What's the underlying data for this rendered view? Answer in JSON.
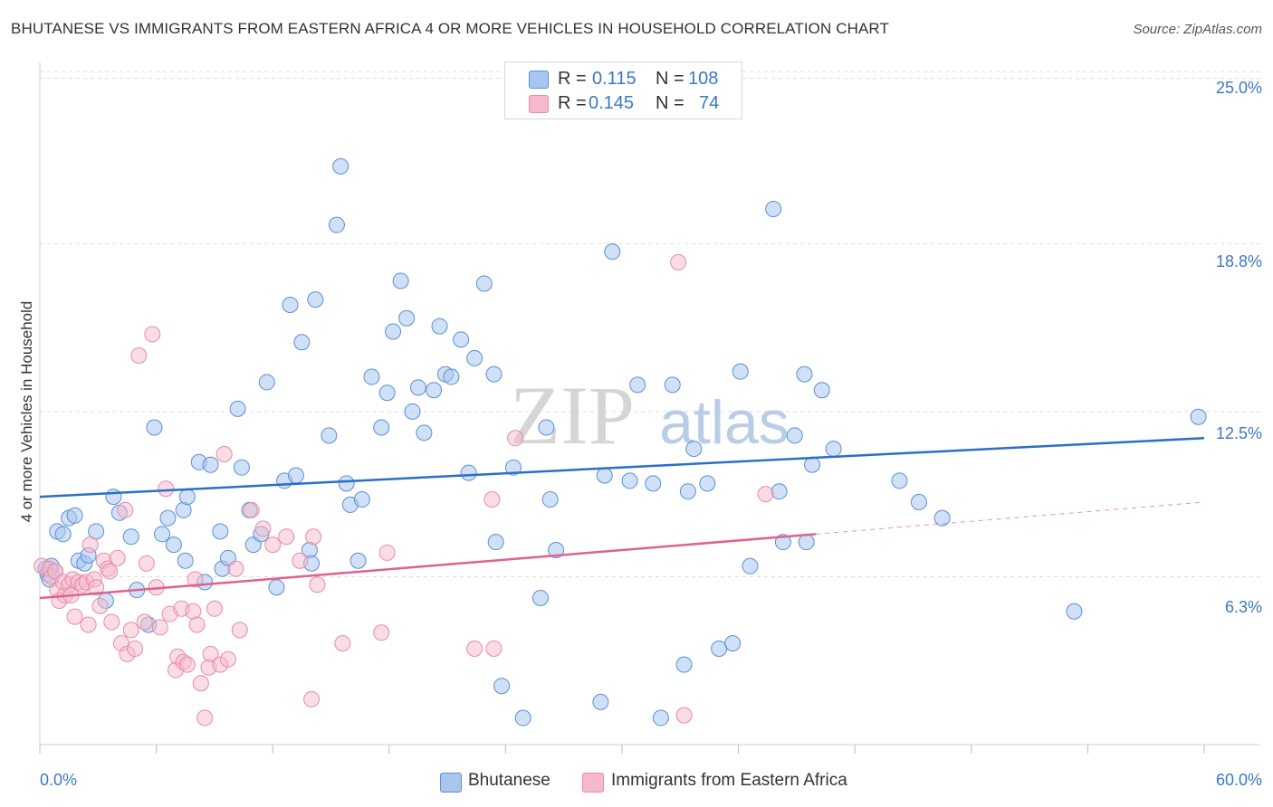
{
  "title": "BHUTANESE VS IMMIGRANTS FROM EASTERN AFRICA 4 OR MORE VEHICLES IN HOUSEHOLD CORRELATION CHART",
  "source": "Source: ZipAtlas.com",
  "watermark": {
    "zip": "ZIP",
    "atlas": "atlas"
  },
  "legend_top": {
    "rows": [
      {
        "r_label": "R =",
        "r_value": "0.115",
        "n_label": "N =",
        "n_value": "108"
      },
      {
        "r_label": "R =",
        "r_value": "0.145",
        "n_label": "N =",
        "n_value": "74"
      }
    ]
  },
  "legend_bottom": {
    "series1": "Bhutanese",
    "series2": "Immigrants from Eastern Africa"
  },
  "colors": {
    "blue_fill": "#a9c6ee",
    "blue_stroke": "#5a8fd6",
    "blue_line": "#2a6fc9",
    "pink_fill": "#f6b9cc",
    "pink_stroke": "#e88aa8",
    "pink_line": "#e0608e",
    "tick_text": "#3a78c8",
    "grid": "#dddddd"
  },
  "chart_data": {
    "type": "scatter",
    "title": "BHUTANESE VS IMMIGRANTS FROM EASTERN AFRICA 4 OR MORE VEHICLES IN HOUSEHOLD CORRELATION CHART",
    "xlabel": "",
    "ylabel": "4 or more Vehicles in Household",
    "xlim": [
      0,
      60
    ],
    "ylim": [
      0,
      25.6
    ],
    "x_tick_labels": [
      "0.0%",
      "60.0%"
    ],
    "y_ticks": [
      6.3,
      12.5,
      18.8,
      25.0
    ],
    "y_tick_labels": [
      "6.3%",
      "12.5%",
      "18.8%",
      "25.0%"
    ],
    "grid": true,
    "legend_position": "top-center",
    "series": [
      {
        "name": "Bhutanese",
        "r": 0.115,
        "n": 108,
        "trend": {
          "x": [
            0,
            60
          ],
          "y": [
            9.3,
            11.5
          ]
        },
        "points": [
          [
            0.3,
            6.6
          ],
          [
            0.4,
            6.4
          ],
          [
            0.5,
            6.2
          ],
          [
            0.6,
            6.7
          ],
          [
            0.8,
            6.5
          ],
          [
            0.9,
            8.0
          ],
          [
            1.2,
            7.9
          ],
          [
            1.5,
            8.5
          ],
          [
            1.8,
            8.6
          ],
          [
            2.0,
            6.9
          ],
          [
            2.3,
            6.8
          ],
          [
            2.5,
            7.1
          ],
          [
            2.9,
            8.0
          ],
          [
            3.4,
            5.4
          ],
          [
            3.8,
            9.3
          ],
          [
            4.1,
            8.7
          ],
          [
            4.7,
            7.8
          ],
          [
            5.0,
            5.8
          ],
          [
            5.6,
            4.5
          ],
          [
            5.9,
            11.9
          ],
          [
            6.3,
            7.9
          ],
          [
            6.6,
            8.5
          ],
          [
            6.9,
            7.5
          ],
          [
            7.4,
            8.8
          ],
          [
            7.5,
            6.9
          ],
          [
            7.6,
            9.3
          ],
          [
            8.2,
            10.6
          ],
          [
            8.5,
            6.1
          ],
          [
            8.8,
            10.5
          ],
          [
            9.3,
            8.0
          ],
          [
            9.4,
            6.6
          ],
          [
            9.7,
            7.0
          ],
          [
            10.2,
            12.6
          ],
          [
            10.4,
            10.4
          ],
          [
            10.8,
            8.8
          ],
          [
            11.0,
            7.5
          ],
          [
            11.4,
            7.9
          ],
          [
            11.7,
            13.6
          ],
          [
            12.2,
            5.9
          ],
          [
            12.6,
            9.9
          ],
          [
            12.9,
            16.5
          ],
          [
            13.2,
            10.1
          ],
          [
            13.5,
            15.1
          ],
          [
            13.9,
            7.3
          ],
          [
            14.0,
            6.8
          ],
          [
            14.2,
            16.7
          ],
          [
            14.9,
            11.6
          ],
          [
            15.3,
            19.5
          ],
          [
            15.5,
            21.7
          ],
          [
            15.8,
            9.8
          ],
          [
            16.0,
            9.0
          ],
          [
            16.4,
            6.9
          ],
          [
            16.6,
            9.2
          ],
          [
            17.1,
            13.8
          ],
          [
            17.6,
            11.9
          ],
          [
            17.9,
            13.2
          ],
          [
            18.2,
            15.5
          ],
          [
            18.6,
            17.4
          ],
          [
            18.9,
            16.0
          ],
          [
            19.2,
            12.5
          ],
          [
            19.5,
            13.4
          ],
          [
            19.8,
            11.7
          ],
          [
            20.3,
            13.3
          ],
          [
            20.6,
            15.7
          ],
          [
            20.9,
            13.9
          ],
          [
            21.2,
            13.8
          ],
          [
            21.7,
            15.2
          ],
          [
            22.1,
            10.2
          ],
          [
            22.4,
            14.5
          ],
          [
            22.9,
            17.3
          ],
          [
            23.4,
            13.9
          ],
          [
            23.5,
            7.6
          ],
          [
            23.8,
            2.2
          ],
          [
            24.4,
            10.4
          ],
          [
            24.9,
            1.0
          ],
          [
            25.8,
            5.5
          ],
          [
            26.1,
            11.9
          ],
          [
            26.3,
            9.2
          ],
          [
            26.6,
            7.3
          ],
          [
            28.9,
            1.6
          ],
          [
            29.1,
            10.1
          ],
          [
            29.5,
            18.5
          ],
          [
            30.4,
            9.9
          ],
          [
            30.8,
            13.5
          ],
          [
            31.6,
            9.8
          ],
          [
            32.0,
            1.0
          ],
          [
            32.6,
            13.5
          ],
          [
            33.2,
            3.0
          ],
          [
            33.4,
            9.5
          ],
          [
            33.7,
            11.1
          ],
          [
            34.4,
            9.8
          ],
          [
            35.0,
            3.6
          ],
          [
            35.7,
            3.8
          ],
          [
            36.1,
            14.0
          ],
          [
            36.6,
            6.7
          ],
          [
            37.8,
            20.1
          ],
          [
            38.1,
            9.5
          ],
          [
            38.3,
            7.6
          ],
          [
            38.9,
            11.6
          ],
          [
            39.4,
            13.9
          ],
          [
            39.5,
            7.6
          ],
          [
            39.8,
            10.5
          ],
          [
            40.3,
            13.3
          ],
          [
            40.9,
            11.1
          ],
          [
            44.3,
            9.9
          ],
          [
            45.3,
            9.1
          ],
          [
            46.5,
            8.5
          ],
          [
            53.3,
            5.0
          ],
          [
            59.7,
            12.3
          ]
        ]
      },
      {
        "name": "Immigrants from Eastern Africa",
        "r": 0.145,
        "n": 74,
        "trend": {
          "x": [
            0,
            40
          ],
          "y": [
            5.5,
            7.9
          ],
          "dashed_to": {
            "x": 60,
            "y": 9.1
          }
        },
        "points": [
          [
            0.1,
            6.7
          ],
          [
            0.5,
            6.6
          ],
          [
            0.6,
            6.3
          ],
          [
            0.8,
            6.5
          ],
          [
            0.9,
            5.8
          ],
          [
            1.0,
            5.4
          ],
          [
            1.2,
            6.1
          ],
          [
            1.3,
            5.6
          ],
          [
            1.5,
            6.0
          ],
          [
            1.6,
            5.6
          ],
          [
            1.7,
            6.2
          ],
          [
            1.8,
            4.8
          ],
          [
            2.0,
            6.1
          ],
          [
            2.2,
            6.0
          ],
          [
            2.4,
            6.1
          ],
          [
            2.5,
            4.5
          ],
          [
            2.6,
            7.5
          ],
          [
            2.8,
            6.2
          ],
          [
            2.9,
            5.9
          ],
          [
            3.1,
            5.2
          ],
          [
            3.3,
            6.9
          ],
          [
            3.5,
            6.6
          ],
          [
            3.6,
            6.5
          ],
          [
            3.7,
            4.6
          ],
          [
            4.0,
            7.0
          ],
          [
            4.2,
            3.8
          ],
          [
            4.4,
            8.8
          ],
          [
            4.5,
            3.4
          ],
          [
            4.7,
            4.3
          ],
          [
            4.9,
            3.6
          ],
          [
            5.1,
            14.6
          ],
          [
            5.4,
            4.6
          ],
          [
            5.5,
            6.8
          ],
          [
            5.8,
            15.4
          ],
          [
            6.0,
            5.9
          ],
          [
            6.2,
            4.4
          ],
          [
            6.5,
            9.6
          ],
          [
            6.7,
            4.9
          ],
          [
            7.0,
            2.8
          ],
          [
            7.1,
            3.3
          ],
          [
            7.3,
            5.1
          ],
          [
            7.4,
            3.1
          ],
          [
            7.6,
            3.0
          ],
          [
            7.9,
            5.0
          ],
          [
            8.0,
            6.2
          ],
          [
            8.1,
            4.5
          ],
          [
            8.3,
            2.3
          ],
          [
            8.5,
            1.0
          ],
          [
            8.7,
            2.9
          ],
          [
            8.8,
            3.4
          ],
          [
            9.0,
            5.1
          ],
          [
            9.3,
            3.0
          ],
          [
            9.5,
            10.9
          ],
          [
            9.7,
            3.2
          ],
          [
            10.1,
            6.6
          ],
          [
            10.3,
            4.3
          ],
          [
            10.9,
            8.8
          ],
          [
            11.5,
            8.1
          ],
          [
            12.0,
            7.5
          ],
          [
            12.7,
            7.8
          ],
          [
            13.4,
            6.9
          ],
          [
            14.0,
            1.7
          ],
          [
            14.1,
            7.8
          ],
          [
            14.3,
            6.0
          ],
          [
            15.6,
            3.8
          ],
          [
            17.6,
            4.2
          ],
          [
            17.9,
            7.2
          ],
          [
            22.4,
            3.6
          ],
          [
            23.3,
            9.2
          ],
          [
            23.4,
            3.6
          ],
          [
            24.5,
            11.5
          ],
          [
            32.9,
            18.1
          ],
          [
            33.2,
            1.1
          ],
          [
            37.4,
            9.4
          ]
        ]
      }
    ]
  }
}
